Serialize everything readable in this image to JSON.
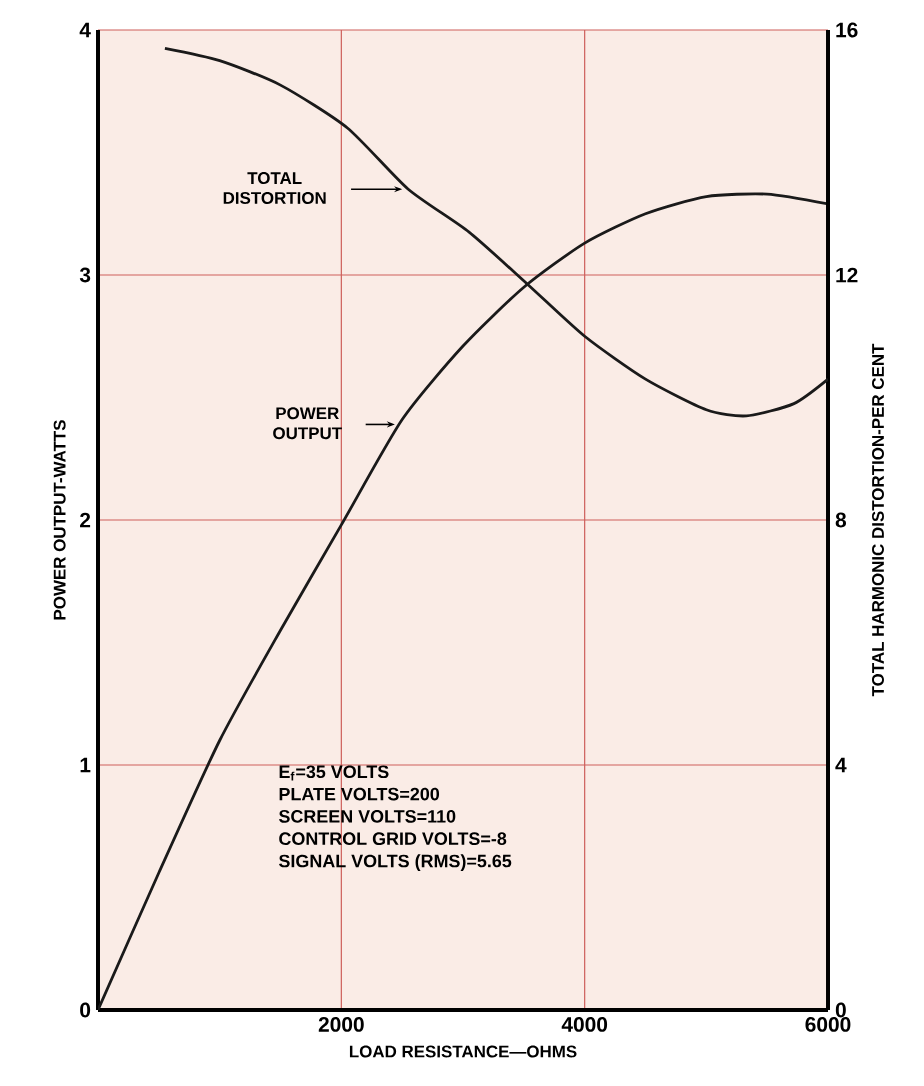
{
  "chart_data": {
    "type": "line",
    "xlabel": "LOAD RESISTANCE—OHMS",
    "ylabel": "POWER OUTPUT-WATTS",
    "y2label": "TOTAL HARMONIC DISTORTION-PER CENT",
    "x": [
      0,
      500,
      1000,
      1500,
      2000,
      2500,
      3000,
      3500,
      4000,
      4500,
      5000,
      5500,
      6000
    ],
    "series": [
      {
        "name": "POWER OUTPUT",
        "color": "#1a1a1a",
        "values": [
          0,
          0.56,
          1.1,
          1.55,
          1.98,
          2.41,
          2.71,
          2.95,
          3.13,
          3.25,
          3.32,
          3.33,
          3.29
        ]
      },
      {
        "name": "TOTAL DISTORTION",
        "color": "#1a1a1a",
        "axis": "y2",
        "x": [
          550,
          1000,
          1500,
          2050,
          2550,
          3050,
          3530,
          4000,
          4500,
          5000,
          5330,
          5720,
          6000
        ],
        "values": [
          15.7,
          15.5,
          15.1,
          14.4,
          13.4,
          12.7,
          11.85,
          11.0,
          10.3,
          9.8,
          9.7,
          9.9,
          10.3
        ]
      }
    ],
    "xlim": [
      0,
      6000
    ],
    "xticks": [
      2000,
      4000,
      6000
    ],
    "ylim": [
      0,
      4
    ],
    "yticks": [
      0,
      1,
      2,
      3,
      4
    ],
    "y2lim": [
      0,
      16
    ],
    "y2ticks": [
      0,
      4,
      8,
      12,
      16
    ],
    "grid": true,
    "annotations": [
      "E$_{f}$=35 VOLTS",
      "PLATE VOLTS=200",
      "SCREEN VOLTS=110",
      "CONTROL GRID VOLTS=-8",
      "SIGNAL VOLTS (RMS)=5.65"
    ]
  }
}
